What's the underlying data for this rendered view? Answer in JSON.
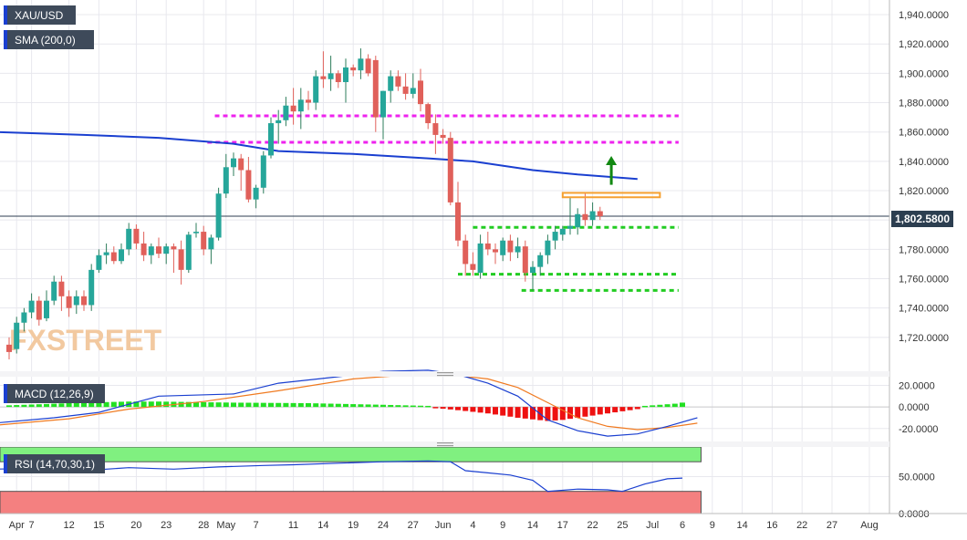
{
  "colors": {
    "bull": "#26a69a",
    "bull_dark": "#2e7d5b",
    "bear": "#e0605a",
    "sma": "#1a3fd0",
    "macd_line": "#1a3fd0",
    "signal_line": "#f07a20",
    "hist_pos": "#22e022",
    "hist_neg": "#ee1111",
    "resistance": "#ee22ee",
    "support": "#22cc22",
    "target_arrow": "#118811",
    "zone": "#f5a030",
    "rsi_over": "#80f080",
    "rsi_under": "#f48080",
    "rsi_line": "#1a3fd0",
    "price_tag": "#2c3e50",
    "label_bg": "#3e4a5a",
    "grid": "#e8e8ee",
    "watermark": "#f2c9a0"
  },
  "chart_data": [
    {
      "type": "candlestick",
      "panel": "price",
      "symbol_label": "XAU/USD",
      "indicator_label": "SMA (200,0)",
      "watermark": "FXSTREET",
      "last_price_label": "1,802.5800",
      "last_price": 1802.58,
      "ylim": [
        1700,
        1945
      ],
      "yticks": [
        1720,
        1740,
        1760,
        1780,
        1800,
        1820,
        1840,
        1860,
        1880,
        1900,
        1920,
        1940
      ],
      "ytick_labels": [
        "1,720.0000",
        "1,740.0000",
        "1,760.0000",
        "1,780.0000",
        "1,800.0000",
        "1,820.0000",
        "1,840.0000",
        "1,860.0000",
        "1,880.0000",
        "1,900.0000",
        "1,920.0000",
        "1,940.0000"
      ],
      "candles": [
        {
          "o": 1715,
          "h": 1720,
          "l": 1705,
          "c": 1710
        },
        {
          "o": 1712,
          "h": 1734,
          "l": 1709,
          "c": 1730
        },
        {
          "o": 1730,
          "h": 1740,
          "l": 1724,
          "c": 1737
        },
        {
          "o": 1737,
          "h": 1750,
          "l": 1733,
          "c": 1745
        },
        {
          "o": 1745,
          "h": 1748,
          "l": 1728,
          "c": 1732
        },
        {
          "o": 1733,
          "h": 1752,
          "l": 1731,
          "c": 1745
        },
        {
          "o": 1745,
          "h": 1762,
          "l": 1742,
          "c": 1758
        },
        {
          "o": 1758,
          "h": 1762,
          "l": 1738,
          "c": 1748
        },
        {
          "o": 1748,
          "h": 1752,
          "l": 1734,
          "c": 1740
        },
        {
          "o": 1742,
          "h": 1752,
          "l": 1736,
          "c": 1748
        },
        {
          "o": 1748,
          "h": 1752,
          "l": 1738,
          "c": 1742
        },
        {
          "o": 1742,
          "h": 1770,
          "l": 1738,
          "c": 1766
        },
        {
          "o": 1766,
          "h": 1780,
          "l": 1764,
          "c": 1776
        },
        {
          "o": 1776,
          "h": 1784,
          "l": 1770,
          "c": 1778
        },
        {
          "o": 1778,
          "h": 1782,
          "l": 1770,
          "c": 1772
        },
        {
          "o": 1772,
          "h": 1784,
          "l": 1770,
          "c": 1780
        },
        {
          "o": 1780,
          "h": 1798,
          "l": 1776,
          "c": 1794
        },
        {
          "o": 1794,
          "h": 1797,
          "l": 1780,
          "c": 1784
        },
        {
          "o": 1784,
          "h": 1792,
          "l": 1772,
          "c": 1776
        },
        {
          "o": 1776,
          "h": 1784,
          "l": 1770,
          "c": 1782
        },
        {
          "o": 1782,
          "h": 1788,
          "l": 1774,
          "c": 1777
        },
        {
          "o": 1777,
          "h": 1784,
          "l": 1770,
          "c": 1782
        },
        {
          "o": 1782,
          "h": 1784,
          "l": 1764,
          "c": 1780
        },
        {
          "o": 1780,
          "h": 1786,
          "l": 1756,
          "c": 1766
        },
        {
          "o": 1766,
          "h": 1792,
          "l": 1764,
          "c": 1790
        },
        {
          "o": 1791,
          "h": 1798,
          "l": 1788,
          "c": 1792
        },
        {
          "o": 1792,
          "h": 1796,
          "l": 1776,
          "c": 1780
        },
        {
          "o": 1780,
          "h": 1790,
          "l": 1770,
          "c": 1788
        },
        {
          "o": 1788,
          "h": 1822,
          "l": 1786,
          "c": 1818
        },
        {
          "o": 1818,
          "h": 1845,
          "l": 1815,
          "c": 1836
        },
        {
          "o": 1836,
          "h": 1846,
          "l": 1830,
          "c": 1842
        },
        {
          "o": 1842,
          "h": 1845,
          "l": 1820,
          "c": 1834
        },
        {
          "o": 1834,
          "h": 1843,
          "l": 1812,
          "c": 1814
        },
        {
          "o": 1814,
          "h": 1824,
          "l": 1808,
          "c": 1822
        },
        {
          "o": 1822,
          "h": 1847,
          "l": 1818,
          "c": 1844
        },
        {
          "o": 1844,
          "h": 1870,
          "l": 1842,
          "c": 1866
        },
        {
          "o": 1866,
          "h": 1875,
          "l": 1852,
          "c": 1868
        },
        {
          "o": 1868,
          "h": 1884,
          "l": 1864,
          "c": 1878
        },
        {
          "o": 1878,
          "h": 1890,
          "l": 1865,
          "c": 1874
        },
        {
          "o": 1874,
          "h": 1890,
          "l": 1862,
          "c": 1882
        },
        {
          "o": 1882,
          "h": 1888,
          "l": 1875,
          "c": 1880
        },
        {
          "o": 1880,
          "h": 1902,
          "l": 1875,
          "c": 1898
        },
        {
          "o": 1898,
          "h": 1915,
          "l": 1890,
          "c": 1896
        },
        {
          "o": 1896,
          "h": 1912,
          "l": 1888,
          "c": 1900
        },
        {
          "o": 1900,
          "h": 1902,
          "l": 1890,
          "c": 1894
        },
        {
          "o": 1894,
          "h": 1910,
          "l": 1880,
          "c": 1904
        },
        {
          "o": 1904,
          "h": 1906,
          "l": 1898,
          "c": 1902
        },
        {
          "o": 1902,
          "h": 1917,
          "l": 1896,
          "c": 1910
        },
        {
          "o": 1910,
          "h": 1913,
          "l": 1898,
          "c": 1900
        },
        {
          "o": 1909,
          "h": 1912,
          "l": 1860,
          "c": 1870
        },
        {
          "o": 1870,
          "h": 1888,
          "l": 1855,
          "c": 1888
        },
        {
          "o": 1888,
          "h": 1902,
          "l": 1880,
          "c": 1898
        },
        {
          "o": 1898,
          "h": 1902,
          "l": 1888,
          "c": 1891
        },
        {
          "o": 1891,
          "h": 1900,
          "l": 1882,
          "c": 1886
        },
        {
          "o": 1886,
          "h": 1900,
          "l": 1883,
          "c": 1890
        },
        {
          "o": 1895,
          "h": 1903,
          "l": 1874,
          "c": 1879
        },
        {
          "o": 1879,
          "h": 1880,
          "l": 1862,
          "c": 1866
        },
        {
          "o": 1866,
          "h": 1872,
          "l": 1845,
          "c": 1858
        },
        {
          "o": 1858,
          "h": 1862,
          "l": 1852,
          "c": 1856
        },
        {
          "o": 1856,
          "h": 1860,
          "l": 1810,
          "c": 1812
        },
        {
          "o": 1812,
          "h": 1826,
          "l": 1782,
          "c": 1786
        },
        {
          "o": 1786,
          "h": 1790,
          "l": 1762,
          "c": 1770
        },
        {
          "o": 1770,
          "h": 1778,
          "l": 1762,
          "c": 1766
        },
        {
          "o": 1764,
          "h": 1790,
          "l": 1760,
          "c": 1784
        },
        {
          "o": 1784,
          "h": 1792,
          "l": 1776,
          "c": 1780
        },
        {
          "o": 1780,
          "h": 1784,
          "l": 1770,
          "c": 1778
        },
        {
          "o": 1776,
          "h": 1788,
          "l": 1772,
          "c": 1786
        },
        {
          "o": 1786,
          "h": 1790,
          "l": 1772,
          "c": 1778
        },
        {
          "o": 1778,
          "h": 1788,
          "l": 1774,
          "c": 1782
        },
        {
          "o": 1782,
          "h": 1786,
          "l": 1758,
          "c": 1764
        },
        {
          "o": 1764,
          "h": 1772,
          "l": 1752,
          "c": 1768
        },
        {
          "o": 1768,
          "h": 1778,
          "l": 1762,
          "c": 1776
        },
        {
          "o": 1776,
          "h": 1790,
          "l": 1770,
          "c": 1786
        },
        {
          "o": 1786,
          "h": 1796,
          "l": 1780,
          "c": 1792
        },
        {
          "o": 1790,
          "h": 1796,
          "l": 1786,
          "c": 1794
        },
        {
          "o": 1794,
          "h": 1816,
          "l": 1790,
          "c": 1796
        },
        {
          "o": 1795,
          "h": 1808,
          "l": 1790,
          "c": 1804
        },
        {
          "o": 1804,
          "h": 1818,
          "l": 1796,
          "c": 1800
        },
        {
          "o": 1800,
          "h": 1812,
          "l": 1796,
          "c": 1806
        },
        {
          "o": 1806,
          "h": 1809,
          "l": 1800,
          "c": 1802.58
        }
      ],
      "sma_200": [
        {
          "i": -2,
          "v": 1860
        },
        {
          "i": 10,
          "v": 1858
        },
        {
          "i": 20,
          "v": 1856
        },
        {
          "i": 30,
          "v": 1852
        },
        {
          "i": 36,
          "v": 1847
        },
        {
          "i": 46,
          "v": 1845
        },
        {
          "i": 56,
          "v": 1842
        },
        {
          "i": 62,
          "v": 1840
        },
        {
          "i": 70,
          "v": 1834
        },
        {
          "i": 76,
          "v": 1831
        },
        {
          "i": 84,
          "v": 1828
        }
      ],
      "levels": [
        {
          "kind": "resistance",
          "value": 1871,
          "from": 27.5,
          "to": 89.5
        },
        {
          "kind": "resistance",
          "value": 1853,
          "from": 26.5,
          "to": 89.5
        },
        {
          "kind": "support",
          "value": 1795,
          "from": 62,
          "to": 89.5
        },
        {
          "kind": "support",
          "value": 1763,
          "from": 60,
          "to": 89.5
        },
        {
          "kind": "support",
          "value": 1752,
          "from": 68.5,
          "to": 89.5
        }
      ],
      "zone": {
        "from": 1815.5,
        "to": 1818.5,
        "start": 74,
        "end": 87
      },
      "arrow": {
        "index": 80.5,
        "from": 1824,
        "to": 1843
      },
      "x_axis": {
        "labels": [
          {
            "i": 1,
            "t": "Apr"
          },
          {
            "i": 3,
            "t": "7"
          },
          {
            "i": 8,
            "t": "12"
          },
          {
            "i": 12,
            "t": "15"
          },
          {
            "i": 17,
            "t": "20"
          },
          {
            "i": 21,
            "t": "23"
          },
          {
            "i": 26,
            "t": "28"
          },
          {
            "i": 29,
            "t": "May"
          },
          {
            "i": 33,
            "t": "7"
          },
          {
            "i": 38,
            "t": "11"
          },
          {
            "i": 42,
            "t": "14"
          },
          {
            "i": 46,
            "t": "19"
          },
          {
            "i": 50,
            "t": "24"
          },
          {
            "i": 54,
            "t": "27"
          },
          {
            "i": 58,
            "t": "Jun"
          },
          {
            "i": 62,
            "t": "4"
          },
          {
            "i": 66,
            "t": "9"
          },
          {
            "i": 70,
            "t": "14"
          },
          {
            "i": 74,
            "t": "17"
          },
          {
            "i": 78,
            "t": "22"
          },
          {
            "i": 82,
            "t": "25"
          },
          {
            "i": 86,
            "t": "Jul"
          },
          {
            "i": 90,
            "t": "6"
          },
          {
            "i": 94,
            "t": "9"
          },
          {
            "i": 98,
            "t": "14"
          },
          {
            "i": 102,
            "t": "16"
          },
          {
            "i": 106,
            "t": "22"
          },
          {
            "i": 110,
            "t": "27"
          },
          {
            "i": 115,
            "t": "Aug"
          }
        ]
      }
    },
    {
      "type": "line",
      "panel": "macd",
      "label": "MACD (12,26,9)",
      "ylim": [
        -32,
        28
      ],
      "yticks": [
        -20,
        0,
        20
      ],
      "ytick_labels": [
        "-20.0000",
        "0.0000",
        "20.0000"
      ],
      "macd": [
        {
          "i": -2,
          "v": -15
        },
        {
          "i": 6,
          "v": -10
        },
        {
          "i": 12,
          "v": -5
        },
        {
          "i": 20,
          "v": 10
        },
        {
          "i": 30,
          "v": 12
        },
        {
          "i": 36,
          "v": 22
        },
        {
          "i": 44,
          "v": 28
        },
        {
          "i": 50,
          "v": 33
        },
        {
          "i": 56,
          "v": 34
        },
        {
          "i": 60,
          "v": 30
        },
        {
          "i": 64,
          "v": 22
        },
        {
          "i": 68,
          "v": 10
        },
        {
          "i": 72,
          "v": -12
        },
        {
          "i": 76,
          "v": -22
        },
        {
          "i": 80,
          "v": -27
        },
        {
          "i": 84,
          "v": -25
        },
        {
          "i": 88,
          "v": -18
        },
        {
          "i": 92,
          "v": -10
        }
      ],
      "signal": [
        {
          "i": -2,
          "v": -17
        },
        {
          "i": 8,
          "v": -11
        },
        {
          "i": 16,
          "v": -2
        },
        {
          "i": 26,
          "v": 5
        },
        {
          "i": 36,
          "v": 15
        },
        {
          "i": 46,
          "v": 26
        },
        {
          "i": 56,
          "v": 31
        },
        {
          "i": 60,
          "v": 29
        },
        {
          "i": 64,
          "v": 26
        },
        {
          "i": 68,
          "v": 18
        },
        {
          "i": 72,
          "v": 4
        },
        {
          "i": 76,
          "v": -10
        },
        {
          "i": 80,
          "v": -18
        },
        {
          "i": 84,
          "v": -21
        },
        {
          "i": 88,
          "v": -19
        },
        {
          "i": 92,
          "v": -15
        }
      ],
      "histogram_pos": [
        {
          "i": 0,
          "v": 1.5
        },
        {
          "i": 10,
          "v": 4
        },
        {
          "i": 16,
          "v": 5
        },
        {
          "i": 20,
          "v": 5
        },
        {
          "i": 30,
          "v": 4
        },
        {
          "i": 40,
          "v": 3.5
        },
        {
          "i": 50,
          "v": 2
        },
        {
          "i": 56,
          "v": 1
        }
      ],
      "histogram_neg": [
        {
          "i": 57,
          "v": -1
        },
        {
          "i": 60,
          "v": -3
        },
        {
          "i": 64,
          "v": -6
        },
        {
          "i": 68,
          "v": -10
        },
        {
          "i": 72,
          "v": -13
        },
        {
          "i": 74,
          "v": -12
        },
        {
          "i": 76,
          "v": -10
        },
        {
          "i": 80,
          "v": -6
        },
        {
          "i": 84,
          "v": -2
        }
      ],
      "histogram_tail_pos": [
        {
          "i": 85,
          "v": 1
        },
        {
          "i": 89,
          "v": 3
        },
        {
          "i": 90,
          "v": 4
        }
      ]
    },
    {
      "type": "line",
      "panel": "rsi",
      "label": "RSI (14,70,30,1)",
      "ylim": [
        0,
        90
      ],
      "yticks": [
        0,
        50
      ],
      "ytick_labels": [
        "0.0000",
        "50.0000"
      ],
      "overbought": 70,
      "oversold": 30,
      "rsi": [
        {
          "i": -2,
          "v": 60
        },
        {
          "i": 4,
          "v": 61
        },
        {
          "i": 10,
          "v": 58
        },
        {
          "i": 16,
          "v": 62
        },
        {
          "i": 22,
          "v": 60
        },
        {
          "i": 28,
          "v": 63
        },
        {
          "i": 34,
          "v": 65
        },
        {
          "i": 38,
          "v": 66
        },
        {
          "i": 44,
          "v": 68
        },
        {
          "i": 50,
          "v": 70
        },
        {
          "i": 56,
          "v": 71
        },
        {
          "i": 59,
          "v": 70
        },
        {
          "i": 61,
          "v": 58
        },
        {
          "i": 64,
          "v": 55
        },
        {
          "i": 67,
          "v": 52
        },
        {
          "i": 70,
          "v": 45
        },
        {
          "i": 72,
          "v": 30
        },
        {
          "i": 76,
          "v": 33
        },
        {
          "i": 80,
          "v": 32
        },
        {
          "i": 82,
          "v": 30
        },
        {
          "i": 85,
          "v": 40
        },
        {
          "i": 88,
          "v": 47
        },
        {
          "i": 90,
          "v": 48
        }
      ]
    }
  ]
}
